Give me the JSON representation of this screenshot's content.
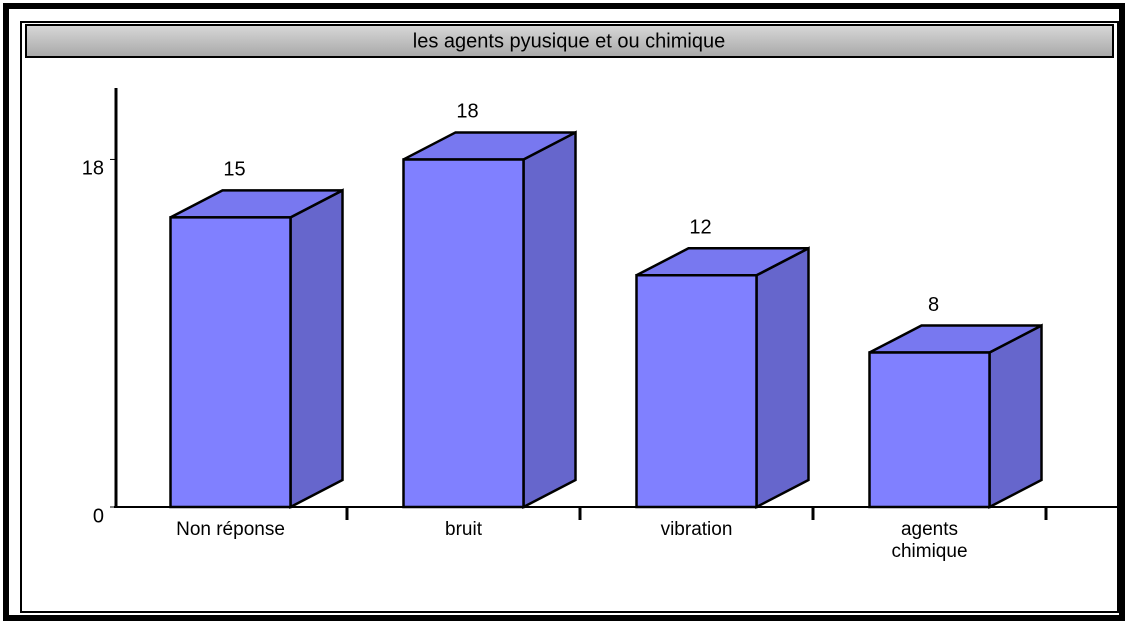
{
  "chart_data": {
    "type": "bar3d",
    "title": "les agents pyusique et ou chimique",
    "categories": [
      "Non réponse",
      "bruit",
      "vibration",
      "agents chimique"
    ],
    "values": [
      15,
      18,
      12,
      8
    ],
    "color": "#8080ff",
    "ylim": [
      0,
      21.7
    ],
    "yticks": [
      0,
      18
    ]
  }
}
